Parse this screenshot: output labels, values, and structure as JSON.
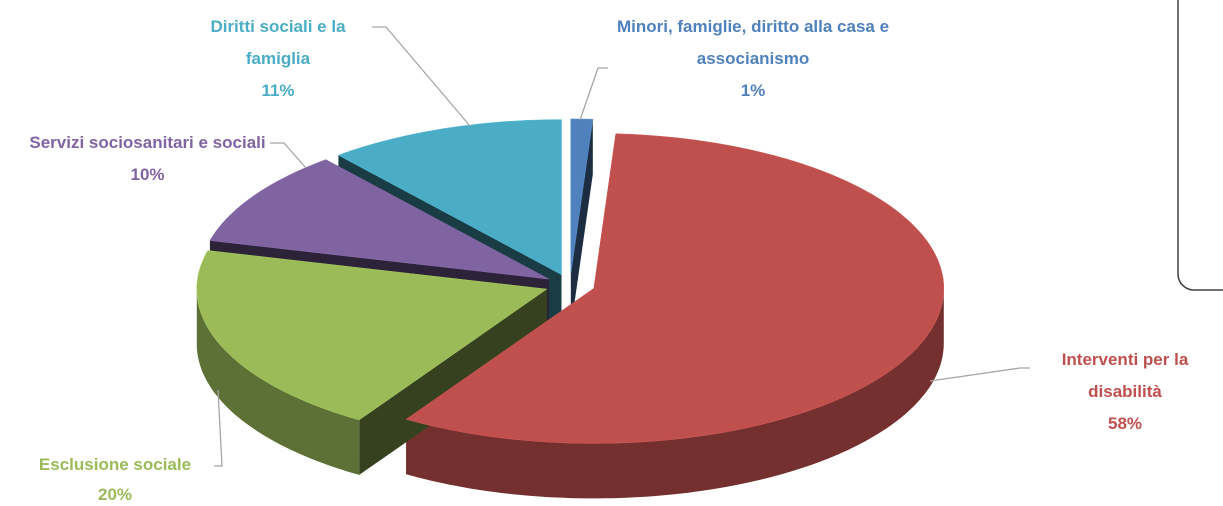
{
  "chart_data": {
    "type": "pie",
    "categories": [
      "Minori, famiglie, diritto alla casa e associanismo",
      "Interventi per la disabilità",
      "Esclusione sociale",
      "Servizi sociosanitari e sociali",
      "Diritti sociali e la famiglia"
    ],
    "values": [
      1,
      58,
      20,
      10,
      11
    ],
    "value_labels": [
      "1%",
      "58%",
      "20%",
      "10%",
      "11%"
    ],
    "colors": [
      "#4f81bd",
      "#c0504d",
      "#9bbb59",
      "#8064a2",
      "#4bacc6"
    ]
  }
}
